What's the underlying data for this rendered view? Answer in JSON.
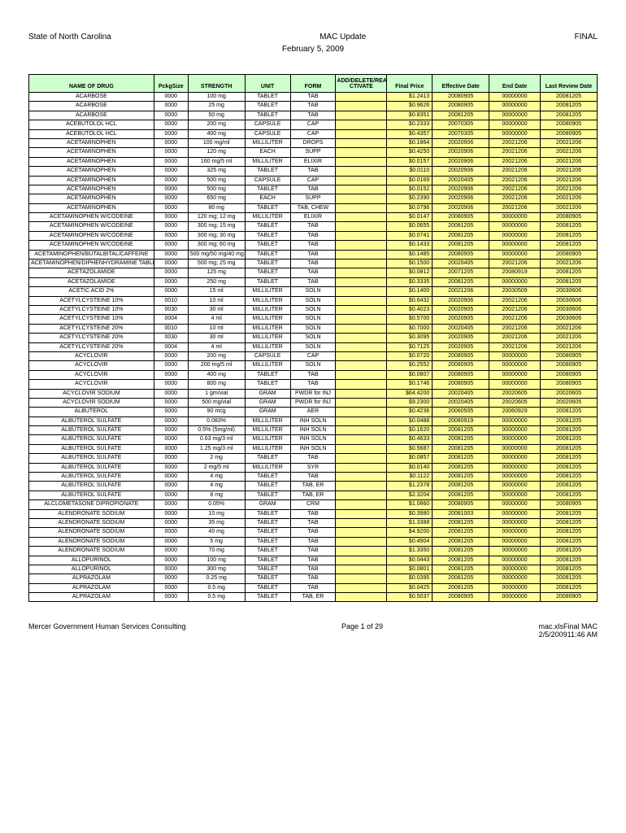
{
  "header": {
    "left": "State of North Carolina",
    "center": "MAC Update",
    "right": "FINAL",
    "date": "February 5, 2009"
  },
  "columns": [
    "NAME OF DRUG",
    "PckgSize",
    "STRENGTH",
    "UNIT",
    "FORM",
    "ADD/DELETE/REA CTIVATE",
    "Final Price",
    "Effective Date",
    "End Date",
    "Last Review Date"
  ],
  "yellow_cols": [
    5,
    6,
    7,
    8,
    9
  ],
  "header_bg": "#ccffcc",
  "yellow_bg": "#ffff99",
  "rows": [
    [
      "ACARBOSE",
      "0000",
      "100 mg",
      "TABLET",
      "TAB",
      "",
      "$1.2413",
      "20080905",
      "00000000",
      "20081205"
    ],
    [
      "ACARBOSE",
      "0000",
      "25 mg",
      "TABLET",
      "TAB",
      "",
      "$0.9626",
      "20080905",
      "00000000",
      "20081205"
    ],
    [
      "ACARBOSE",
      "0000",
      "50 mg",
      "TABLET",
      "TAB",
      "",
      "$0.8351",
      "20081205",
      "00000000",
      "20081205"
    ],
    [
      "ACEBUTOLOL HCL",
      "0000",
      "200 mg",
      "CAPSULE",
      "CAP",
      "",
      "$0.2333",
      "20070305",
      "00000000",
      "20080905"
    ],
    [
      "ACEBUTOLOL HCL",
      "0000",
      "400 mg",
      "CAPSULE",
      "CAP",
      "",
      "$0.4357",
      "20070305",
      "00000000",
      "20080905"
    ],
    [
      "ACETAMINOPHEN",
      "0000",
      "100 mg/ml",
      "MILLILITER",
      "DROPS",
      "",
      "$0.1864",
      "20020906",
      "20021206",
      "20021206"
    ],
    [
      "ACETAMINOPHEN",
      "0000",
      "120 mg",
      "EACH",
      "SUPP",
      "",
      "$0.4250",
      "20020906",
      "20021206",
      "20021206"
    ],
    [
      "ACETAMINOPHEN",
      "0000",
      "160 mg/5 ml",
      "MILLILITER",
      "ELIXIR",
      "",
      "$0.0157",
      "20020906",
      "20021206",
      "20021206"
    ],
    [
      "ACETAMINOPHEN",
      "0000",
      "325 mg",
      "TABLET",
      "TAB",
      "",
      "$0.0110",
      "20020906",
      "20021206",
      "20021206"
    ],
    [
      "ACETAMINOPHEN",
      "0000",
      "500 mg",
      "CAPSULE",
      "CAP",
      "",
      "$0.0169",
      "20020405",
      "20021206",
      "20021206"
    ],
    [
      "ACETAMINOPHEN",
      "0000",
      "500 mg",
      "TABLET",
      "TAB",
      "",
      "$0.0152",
      "20020906",
      "20021206",
      "20021206"
    ],
    [
      "ACETAMINOPHEN",
      "0000",
      "650 mg",
      "EACH",
      "SUPP",
      "",
      "$0.2390",
      "20020906",
      "20021206",
      "20021206"
    ],
    [
      "ACETAMINOPHEN",
      "0000",
      "80 mg",
      "TABLET",
      "TAB, CHEW",
      "",
      "$0.0796",
      "20020906",
      "20021206",
      "20021206"
    ],
    [
      "ACETAMINOPHEN W/CODEINE",
      "0000",
      "120 mg; 12 mg",
      "MILLILITER",
      "ELIXIR",
      "",
      "$0.0147",
      "20080905",
      "00000000",
      "20080905"
    ],
    [
      "ACETAMINOPHEN W/CODEINE",
      "0000",
      "300 mg; 15 mg",
      "TABLET",
      "TAB",
      "",
      "$0.0655",
      "20081205",
      "00000000",
      "20081205"
    ],
    [
      "ACETAMINOPHEN W/CODEINE",
      "0000",
      "300 mg; 30 mg",
      "TABLET",
      "TAB",
      "",
      "$0.0741",
      "20081205",
      "00000000",
      "20081205"
    ],
    [
      "ACETAMINOPHEN W/CODEINE",
      "0000",
      "300 mg; 60 mg",
      "TABLET",
      "TAB",
      "",
      "$0.1433",
      "20081205",
      "00000000",
      "20081205"
    ],
    [
      "ACETAMINOPHEN/BUTALBITAL/CAFFEINE",
      "0000",
      "500 mg/50 mg/40 mg",
      "TABLET",
      "TAB",
      "",
      "$0.1485",
      "20080905",
      "00000000",
      "20080905"
    ],
    [
      "ACETAMINOPHEN/DIPHENHYDRAMINE TABLETS",
      "0000",
      "500 mg; 25 mg",
      "TABLET",
      "TAB",
      "",
      "$0.1500",
      "20020405",
      "20021206",
      "20021206"
    ],
    [
      "ACETAZOLAMIDE",
      "0000",
      "125 mg",
      "TABLET",
      "TAB",
      "",
      "$0.0812",
      "20071205",
      "20080919",
      "20081205"
    ],
    [
      "ACETAZOLAMIDE",
      "0000",
      "250 mg",
      "TABLET",
      "TAB",
      "",
      "$0.3335",
      "20081205",
      "00000000",
      "20081205"
    ],
    [
      "ACETIC ACID 2%",
      "0000",
      "15 ml",
      "MILLILITER",
      "SOLN",
      "",
      "$0.1400",
      "20021206",
      "20030509",
      "20030606"
    ],
    [
      "ACETYLCYSTEINE 10%",
      "0010",
      "10 ml",
      "MILLILITER",
      "SOLN",
      "",
      "$0.6432",
      "20020906",
      "20021206",
      "20030606"
    ],
    [
      "ACETYLCYSTEINE 10%",
      "0030",
      "30 ml",
      "MILLILITER",
      "SOLN",
      "",
      "$0.4023",
      "20020905",
      "20021206",
      "20030606"
    ],
    [
      "ACETYLCYSTEINE 10%",
      "0004",
      "4 ml",
      "MILLILITER",
      "SOLN",
      "",
      "$0.5700",
      "20020905",
      "20021206",
      "20030606"
    ],
    [
      "ACETYLCYSTEINE 20%",
      "0010",
      "10 ml",
      "MILLILITER",
      "SOLN",
      "",
      "$0.7000",
      "20020405",
      "20021206",
      "20021206"
    ],
    [
      "ACETYLCYSTEINE 20%",
      "0030",
      "30 ml",
      "MILLILITER",
      "SOLN",
      "",
      "$0.3095",
      "20020905",
      "20021206",
      "20021206"
    ],
    [
      "ACETYLCYSTEINE 20%",
      "0004",
      "4 ml",
      "MILLILITER",
      "SOLN",
      "",
      "$0.7125",
      "20020905",
      "20021206",
      "20021206"
    ],
    [
      "ACYCLOVIR",
      "0000",
      "200 mg",
      "CAPSULE",
      "CAP",
      "",
      "$0.0720",
      "20080905",
      "00000000",
      "20080905"
    ],
    [
      "ACYCLOVIR",
      "0000",
      "200 mg/5 ml",
      "MILLILITER",
      "SOLN",
      "",
      "$0.2552",
      "20080905",
      "00000000",
      "20080905"
    ],
    [
      "ACYCLOVIR",
      "0000",
      "400 mg",
      "TABLET",
      "TAB",
      "",
      "$0.0807",
      "20080905",
      "00000000",
      "20080905"
    ],
    [
      "ACYCLOVIR",
      "0000",
      "800 mg",
      "TABLET",
      "TAB",
      "",
      "$0.1746",
      "20080905",
      "00000000",
      "20080905"
    ],
    [
      "ACYCLOVIR SODIUM",
      "0000",
      "1 gm/vial",
      "GRAM",
      "PWDR for INJ",
      "",
      "$64.4200",
      "20020405",
      "20020605",
      "20020605"
    ],
    [
      "ACYCLOVIR SODIUM",
      "0000",
      "500 mg/vial",
      "GRAM",
      "PWDR for INJ",
      "",
      "$9.2300",
      "20020405",
      "20020605",
      "20020605"
    ],
    [
      "ALBUTEROL",
      "0000",
      "90 mcg",
      "GRAM",
      "AER",
      "",
      "$0.4236",
      "20060505",
      "20060929",
      "20081205"
    ],
    [
      "ALBUTEROL SULFATE",
      "0000",
      "0.083%",
      "MILLILITER",
      "INH SOLN",
      "",
      "$0.0488",
      "20080919",
      "00000000",
      "20081205"
    ],
    [
      "ALBUTEROL SULFATE",
      "0000",
      "0.5% (5mg/ml)",
      "MILLILITER",
      "INH SOLN",
      "",
      "$0.1620",
      "20081205",
      "00000000",
      "20081205"
    ],
    [
      "ALBUTEROL SULFATE",
      "0000",
      "0.63 mg/3 ml",
      "MILLILITER",
      "INH SOLN",
      "",
      "$0.4633",
      "20081205",
      "00000000",
      "20081205"
    ],
    [
      "ALBUTEROL SULFATE",
      "0000",
      "1.25 mg/3 ml",
      "MILLILITER",
      "INH SOLN",
      "",
      "$0.5687",
      "20081205",
      "00000000",
      "20081205"
    ],
    [
      "ALBUTEROL SULFATE",
      "0000",
      "2 mg",
      "TABLET",
      "TAB",
      "",
      "$0.0857",
      "20081205",
      "00000000",
      "20081205"
    ],
    [
      "ALBUTEROL SULFATE",
      "0000",
      "2 mg/5 ml",
      "MILLILITER",
      "SYR",
      "",
      "$0.0140",
      "20081205",
      "00000000",
      "20081205"
    ],
    [
      "ALBUTEROL SULFATE",
      "0000",
      "4 mg",
      "TABLET",
      "TAB",
      "",
      "$0.1122",
      "20081205",
      "00000000",
      "20081205"
    ],
    [
      "ALBUTEROL SULFATE",
      "0000",
      "4 mg",
      "TABLET",
      "TAB, ER",
      "",
      "$1.2378",
      "20081205",
      "00000000",
      "20081205"
    ],
    [
      "ALBUTEROL SULFATE",
      "0000",
      "8 mg",
      "TABLET",
      "TAB, ER",
      "",
      "$2.3204",
      "20081205",
      "00000000",
      "20081205"
    ],
    [
      "ALCLOMETASONE DIPROPIONATE",
      "0000",
      "0.05%",
      "GRAM",
      "CRM",
      "",
      "$1.0860",
      "20080905",
      "00000000",
      "20080905"
    ],
    [
      "ALENDRONATE SODIUM",
      "0000",
      "10 mg",
      "TABLET",
      "TAB",
      "",
      "$0.3980",
      "20081003",
      "00000000",
      "20081205"
    ],
    [
      "ALENDRONATE SODIUM",
      "0000",
      "35 mg",
      "TABLET",
      "TAB",
      "",
      "$1.3388",
      "20081205",
      "00000000",
      "20081205"
    ],
    [
      "ALENDRONATE SODIUM",
      "0000",
      "40 mg",
      "TABLET",
      "TAB",
      "",
      "$4.9200",
      "20081205",
      "00000000",
      "20081205"
    ],
    [
      "ALENDRONATE SODIUM",
      "0000",
      "5 mg",
      "TABLET",
      "TAB",
      "",
      "$0.4904",
      "20081205",
      "00000000",
      "20081205"
    ],
    [
      "ALENDRONATE SODIUM",
      "0000",
      "70 mg",
      "TABLET",
      "TAB",
      "",
      "$1.3350",
      "20081205",
      "00000000",
      "20081205"
    ],
    [
      "ALLOPURINOL",
      "0000",
      "100 mg",
      "TABLET",
      "TAB",
      "",
      "$0.0443",
      "20081205",
      "00000000",
      "20081205"
    ],
    [
      "ALLOPURINOL",
      "0000",
      "300 mg",
      "TABLET",
      "TAB",
      "",
      "$0.0801",
      "20081205",
      "00000000",
      "20081205"
    ],
    [
      "ALPRAZOLAM",
      "0000",
      "0.25 mg",
      "TABLET",
      "TAB",
      "",
      "$0.0395",
      "20081205",
      "00000000",
      "20081205"
    ],
    [
      "ALPRAZOLAM",
      "0000",
      "0.5 mg",
      "TABLET",
      "TAB",
      "",
      "$0.0425",
      "20081205",
      "00000000",
      "20081205"
    ],
    [
      "ALPRAZOLAM",
      "0000",
      "0.5 mg",
      "TABLET",
      "TAB, ER",
      "",
      "$0.5037",
      "20080905",
      "00000000",
      "20080905"
    ]
  ],
  "footer": {
    "left": "Mercer Government Human Services Consulting",
    "center": "Page 1 of 29",
    "right1": "mac.xlsFinal MAC",
    "right2": "2/5/200911:46 AM"
  }
}
